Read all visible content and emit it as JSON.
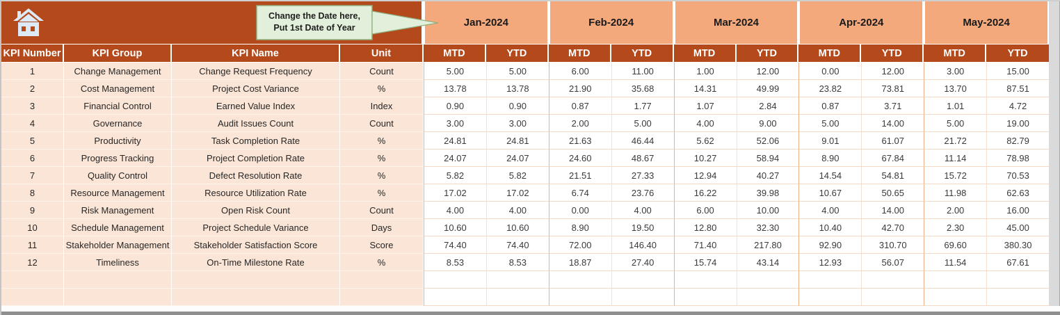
{
  "callout": {
    "line1": "Change the Date here,",
    "line2": "Put 1st Date of Year"
  },
  "icons": {
    "home": "home-icon"
  },
  "colors": {
    "header_rust": "#b4491c",
    "month_salmon": "#f3a97c",
    "row_peach": "#fbe5d6",
    "callout_green": "#e2efda",
    "callout_border": "#8fae7c",
    "home_icon_fill": "#dce9f6"
  },
  "months": [
    "Jan-2024",
    "Feb-2024",
    "Mar-2024",
    "Apr-2024",
    "May-2024"
  ],
  "sub_columns": [
    "MTD",
    "YTD"
  ],
  "left_columns": [
    "KPI Number",
    "KPI Group",
    "KPI Name",
    "Unit"
  ],
  "table": {
    "trailing_empty_rows": 2,
    "rows": [
      {
        "number": "1",
        "group": "Change Management",
        "name": "Change Request Frequency",
        "unit": "Count",
        "values": [
          "5.00",
          "5.00",
          "6.00",
          "11.00",
          "1.00",
          "12.00",
          "0.00",
          "12.00",
          "3.00",
          "15.00"
        ]
      },
      {
        "number": "2",
        "group": "Cost Management",
        "name": "Project Cost Variance",
        "unit": "%",
        "values": [
          "13.78",
          "13.78",
          "21.90",
          "35.68",
          "14.31",
          "49.99",
          "23.82",
          "73.81",
          "13.70",
          "87.51"
        ]
      },
      {
        "number": "3",
        "group": "Financial Control",
        "name": "Earned Value Index",
        "unit": "Index",
        "values": [
          "0.90",
          "0.90",
          "0.87",
          "1.77",
          "1.07",
          "2.84",
          "0.87",
          "3.71",
          "1.01",
          "4.72"
        ]
      },
      {
        "number": "4",
        "group": "Governance",
        "name": "Audit Issues Count",
        "unit": "Count",
        "values": [
          "3.00",
          "3.00",
          "2.00",
          "5.00",
          "4.00",
          "9.00",
          "5.00",
          "14.00",
          "5.00",
          "19.00"
        ]
      },
      {
        "number": "5",
        "group": "Productivity",
        "name": "Task Completion Rate",
        "unit": "%",
        "values": [
          "24.81",
          "24.81",
          "21.63",
          "46.44",
          "5.62",
          "52.06",
          "9.01",
          "61.07",
          "21.72",
          "82.79"
        ]
      },
      {
        "number": "6",
        "group": "Progress Tracking",
        "name": "Project Completion Rate",
        "unit": "%",
        "values": [
          "24.07",
          "24.07",
          "24.60",
          "48.67",
          "10.27",
          "58.94",
          "8.90",
          "67.84",
          "11.14",
          "78.98"
        ]
      },
      {
        "number": "7",
        "group": "Quality Control",
        "name": "Defect Resolution Rate",
        "unit": "%",
        "values": [
          "5.82",
          "5.82",
          "21.51",
          "27.33",
          "12.94",
          "40.27",
          "14.54",
          "54.81",
          "15.72",
          "70.53"
        ]
      },
      {
        "number": "8",
        "group": "Resource Management",
        "name": "Resource Utilization Rate",
        "unit": "%",
        "values": [
          "17.02",
          "17.02",
          "6.74",
          "23.76",
          "16.22",
          "39.98",
          "10.67",
          "50.65",
          "11.98",
          "62.63"
        ]
      },
      {
        "number": "9",
        "group": "Risk Management",
        "name": "Open Risk Count",
        "unit": "Count",
        "values": [
          "4.00",
          "4.00",
          "0.00",
          "4.00",
          "6.00",
          "10.00",
          "4.00",
          "14.00",
          "2.00",
          "16.00"
        ]
      },
      {
        "number": "10",
        "group": "Schedule Management",
        "name": "Project Schedule Variance",
        "unit": "Days",
        "values": [
          "10.60",
          "10.60",
          "8.90",
          "19.50",
          "12.80",
          "32.30",
          "10.40",
          "42.70",
          "2.30",
          "45.00"
        ]
      },
      {
        "number": "11",
        "group": "Stakeholder Management",
        "name": "Stakeholder Satisfaction Score",
        "unit": "Score",
        "values": [
          "74.40",
          "74.40",
          "72.00",
          "146.40",
          "71.40",
          "217.80",
          "92.90",
          "310.70",
          "69.60",
          "380.30"
        ]
      },
      {
        "number": "12",
        "group": "Timeliness",
        "name": "On-Time Milestone Rate",
        "unit": "%",
        "values": [
          "8.53",
          "8.53",
          "18.87",
          "27.40",
          "15.74",
          "43.14",
          "12.93",
          "56.07",
          "11.54",
          "67.61"
        ]
      }
    ]
  }
}
